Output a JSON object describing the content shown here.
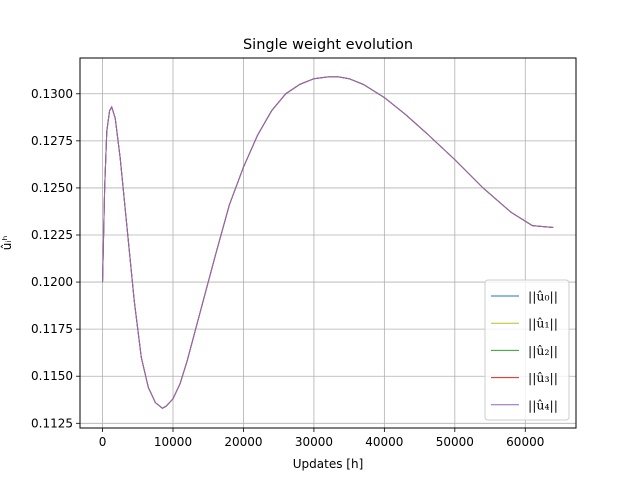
{
  "chart_data": {
    "type": "line",
    "title": "Single weight evolution",
    "xlabel": "Updates [h]",
    "ylabel": "ûᵢʰ",
    "xlim": [
      -3200,
      67200
    ],
    "ylim": [
      0.11225,
      0.1319
    ],
    "grid": true,
    "legend_position": "lower right",
    "x_ticks": [
      0,
      10000,
      20000,
      30000,
      40000,
      50000,
      60000
    ],
    "y_ticks": [
      0.1125,
      0.115,
      0.1175,
      0.12,
      0.1225,
      0.125,
      0.1275,
      0.13
    ],
    "x_tick_labels": [
      "0",
      "10000",
      "20000",
      "30000",
      "40000",
      "50000",
      "60000"
    ],
    "y_tick_labels": [
      "0.1125",
      "0.1150",
      "0.1175",
      "0.1200",
      "0.1225",
      "0.1250",
      "0.1275",
      "0.1300"
    ],
    "x": [
      0,
      300,
      600,
      1000,
      1300,
      1800,
      2500,
      3500,
      4500,
      5500,
      6500,
      7500,
      8500,
      9000,
      10000,
      11000,
      12000,
      14000,
      16000,
      18000,
      20000,
      22000,
      24000,
      26000,
      28000,
      30000,
      32000,
      33500,
      35000,
      37000,
      40000,
      43000,
      46000,
      50000,
      54000,
      58000,
      61000,
      64000
    ],
    "series": [
      {
        "name": "||û₀||",
        "color": "#1f77b4"
      },
      {
        "name": "||û₁||",
        "color": "#bcbd22"
      },
      {
        "name": "||û₂||",
        "color": "#2ca02c"
      },
      {
        "name": "||û₃||",
        "color": "#d62728"
      },
      {
        "name": "||û₄||",
        "color": "#9467bd"
      }
    ],
    "values": [
      0.12,
      0.125,
      0.128,
      0.1291,
      0.1293,
      0.1287,
      0.1266,
      0.1228,
      0.119,
      0.116,
      0.1144,
      0.1136,
      0.1133,
      0.1134,
      0.1138,
      0.1146,
      0.1158,
      0.1186,
      0.1214,
      0.1241,
      0.1261,
      0.1278,
      0.1291,
      0.13,
      0.1305,
      0.1308,
      0.1309,
      0.1309,
      0.1308,
      0.1305,
      0.1298,
      0.1289,
      0.1279,
      0.1265,
      0.125,
      0.1237,
      0.123,
      0.1229
    ]
  }
}
